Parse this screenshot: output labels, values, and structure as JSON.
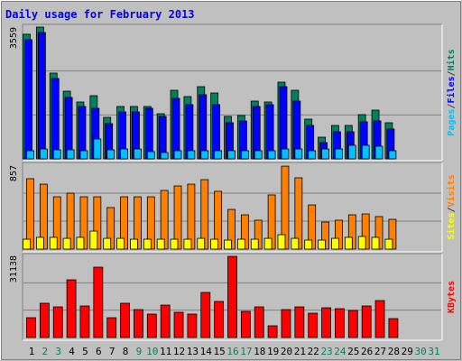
{
  "chart_data": [
    {
      "type": "bar",
      "title": "Daily usage for February 2013",
      "ylim": [
        0,
        3559
      ],
      "yticks": [
        3559
      ],
      "series": [
        {
          "name": "Hits",
          "color": "#00805c",
          "values": [
            3366,
            3559,
            2316,
            1828,
            1536,
            1706,
            1121,
            1414,
            1414,
            1414,
            1219,
            1852,
            1682,
            1950,
            1779,
            1146,
            1170,
            1560,
            1536,
            2072,
            1852,
            1072,
            585,
            902,
            902,
            1194,
            1316,
            975,
            null,
            null,
            null
          ]
        },
        {
          "name": "Files",
          "color": "#0000ff",
          "values": [
            3218,
            3413,
            2170,
            1658,
            1414,
            1365,
            951,
            1268,
            1268,
            1365,
            1146,
            1633,
            1463,
            1731,
            1463,
            975,
            1024,
            1414,
            1463,
            1950,
            1560,
            902,
            439,
            731,
            731,
            1000,
            1024,
            805,
            null,
            null,
            null
          ]
        },
        {
          "name": "Pages",
          "color": "#00c0ff",
          "values": [
            220,
            268,
            244,
            244,
            220,
            536,
            244,
            268,
            268,
            195,
            171,
            220,
            220,
            220,
            220,
            220,
            220,
            220,
            220,
            268,
            268,
            220,
            268,
            268,
            366,
            366,
            341,
            220,
            null,
            null,
            null
          ]
        }
      ]
    },
    {
      "type": "bar",
      "ylim": [
        0,
        857
      ],
      "yticks": [
        857
      ],
      "series": [
        {
          "name": "Visits",
          "color": "#ff8000",
          "values": [
            719,
            663,
            534,
            571,
            534,
            534,
            424,
            534,
            534,
            534,
            599,
            645,
            663,
            709,
            590,
            405,
            350,
            295,
            553,
            847,
            728,
            451,
            276,
            295,
            350,
            359,
            332,
            304,
            null,
            null,
            null
          ]
        },
        {
          "name": "Sites",
          "color": "#ffff00",
          "values": [
            101,
            120,
            120,
            110,
            120,
            184,
            110,
            110,
            101,
            101,
            101,
            101,
            101,
            110,
            101,
            92,
            101,
            101,
            110,
            147,
            110,
            92,
            92,
            110,
            120,
            129,
            120,
            101,
            null,
            null,
            null
          ]
        }
      ]
    },
    {
      "type": "bar",
      "ylim": [
        0,
        31138
      ],
      "yticks": [
        31138
      ],
      "categories": [
        "1",
        "2",
        "3",
        "4",
        "5",
        "6",
        "7",
        "8",
        "9",
        "10",
        "11",
        "12",
        "13",
        "14",
        "15",
        "16",
        "17",
        "18",
        "19",
        "20",
        "21",
        "22",
        "23",
        "24",
        "25",
        "26",
        "27",
        "28",
        "29",
        "30",
        "31"
      ],
      "category_colors": [
        "#000000",
        "#00805c",
        "#00805c",
        "#000000",
        "#000000",
        "#000000",
        "#000000",
        "#000000",
        "#00805c",
        "#00805c",
        "#000000",
        "#000000",
        "#000000",
        "#000000",
        "#000000",
        "#00805c",
        "#00805c",
        "#000000",
        "#000000",
        "#000000",
        "#000000",
        "#000000",
        "#00805c",
        "#00805c",
        "#000000",
        "#000000",
        "#000000",
        "#000000",
        "#000000",
        "#00805c",
        "#00805c"
      ],
      "series": [
        {
          "name": "KBytes",
          "color": "#ff0000",
          "values": [
            7524,
            13000,
            11630,
            21890,
            11970,
            26680,
            7524,
            13000,
            10600,
            8890,
            12310,
            9580,
            8890,
            17100,
            13680,
            30780,
            9920,
            11630,
            4450,
            10600,
            11630,
            9230,
            11290,
            10940,
            10260,
            11970,
            14020,
            7180,
            null,
            null,
            null
          ]
        }
      ]
    }
  ],
  "legend_separator": "/"
}
